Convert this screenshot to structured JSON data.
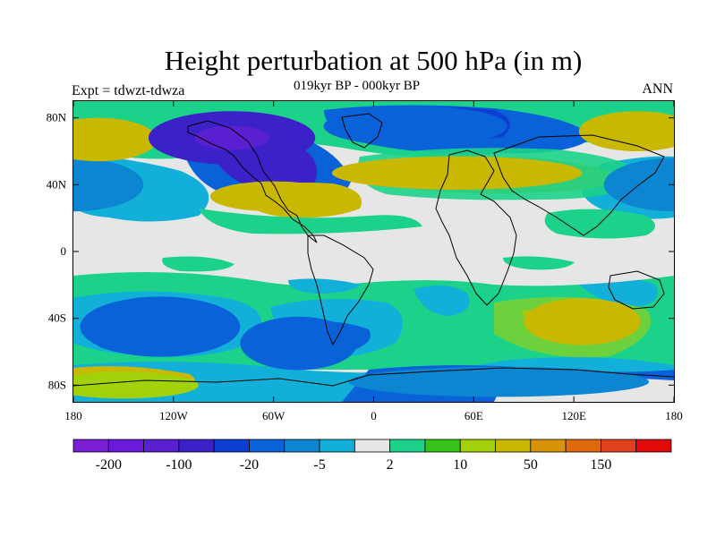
{
  "title": "Height perturbation at 500 hPa (in m)",
  "subtitle": "019kyr BP - 000kyr BP",
  "left_label": "Expt = tdwzt-tdwza",
  "right_label": "ANN",
  "map": {
    "projection": "cylindrical-equidistant",
    "lon_range": [
      -180,
      180
    ],
    "lat_range": [
      -90,
      90
    ],
    "lat_ticks": [
      {
        "value": 80,
        "label": "80N"
      },
      {
        "value": 40,
        "label": "40N"
      },
      {
        "value": 0,
        "label": "0"
      },
      {
        "value": -40,
        "label": "40S"
      },
      {
        "value": -80,
        "label": "80S"
      }
    ],
    "lon_ticks": [
      {
        "value": -180,
        "label": "180"
      },
      {
        "value": -120,
        "label": "120W"
      },
      {
        "value": -60,
        "label": "60W"
      },
      {
        "value": 0,
        "label": "0"
      },
      {
        "value": 60,
        "label": "60E"
      },
      {
        "value": 120,
        "label": "120E"
      },
      {
        "value": 180,
        "label": "180"
      }
    ],
    "background_color": "#e6e6e6",
    "coastline_color": "#000000"
  },
  "colorbar": {
    "colors": [
      "#7a1fd6",
      "#6a1adb",
      "#5a1fd0",
      "#3b22c8",
      "#0c3fd2",
      "#0a62d8",
      "#0c86d0",
      "#12b0d8",
      "#e6e6e6",
      "#1cd28a",
      "#36c41a",
      "#a2d10a",
      "#c9b800",
      "#d9930a",
      "#e06a0a",
      "#e0401a",
      "#e00a0a"
    ],
    "labels": [
      {
        "after_box": 1,
        "text": "-200"
      },
      {
        "after_box": 3,
        "text": "-100"
      },
      {
        "after_box": 5,
        "text": "-20"
      },
      {
        "after_box": 7,
        "text": "-5"
      },
      {
        "after_box": 9,
        "text": "2"
      },
      {
        "after_box": 11,
        "text": "10"
      },
      {
        "after_box": 13,
        "text": "50"
      },
      {
        "after_box": 15,
        "text": "150"
      }
    ]
  },
  "field": [
    {
      "lon": 180,
      "lat": 40,
      "rx": 42,
      "ry": 16,
      "level": -3,
      "color": "#0c86d0"
    },
    {
      "lon": -180,
      "lat": 40,
      "rx": 42,
      "ry": 16,
      "level": -3,
      "color": "#0c86d0"
    },
    {
      "lon": -165,
      "lat": 67,
      "rx": 35,
      "ry": 13,
      "level": 3,
      "color": "#c9b800"
    },
    {
      "lon": 158,
      "lat": 72,
      "rx": 35,
      "ry": 12,
      "level": 3,
      "color": "#c9b800"
    },
    {
      "lon": -85,
      "lat": 68,
      "rx": 50,
      "ry": 16,
      "level": -4,
      "color": "#3b22c8"
    },
    {
      "lon": 25,
      "lat": 75,
      "rx": 55,
      "ry": 12,
      "level": -3,
      "color": "#0a62d8"
    },
    {
      "lon": -60,
      "lat": 33,
      "rx": 38,
      "ry": 9,
      "level": 3,
      "color": "#c9b800"
    },
    {
      "lon": 50,
      "lat": 47,
      "rx": 75,
      "ry": 10,
      "level": 3,
      "color": "#c9b800"
    },
    {
      "lon": -128,
      "lat": -45,
      "rx": 48,
      "ry": 18,
      "level": -2,
      "color": "#0a62d8"
    },
    {
      "lon": -45,
      "lat": -55,
      "rx": 35,
      "ry": 16,
      "level": -2,
      "color": "#0a62d8"
    },
    {
      "lon": 125,
      "lat": -42,
      "rx": 35,
      "ry": 14,
      "level": 3,
      "color": "#c9b800"
    },
    {
      "lon": -150,
      "lat": -80,
      "rx": 45,
      "ry": 8,
      "level": 2,
      "color": "#a2d10a"
    },
    {
      "lon": 75,
      "lat": -78,
      "rx": 90,
      "ry": 9,
      "level": -2,
      "color": "#0c86d0"
    }
  ]
}
